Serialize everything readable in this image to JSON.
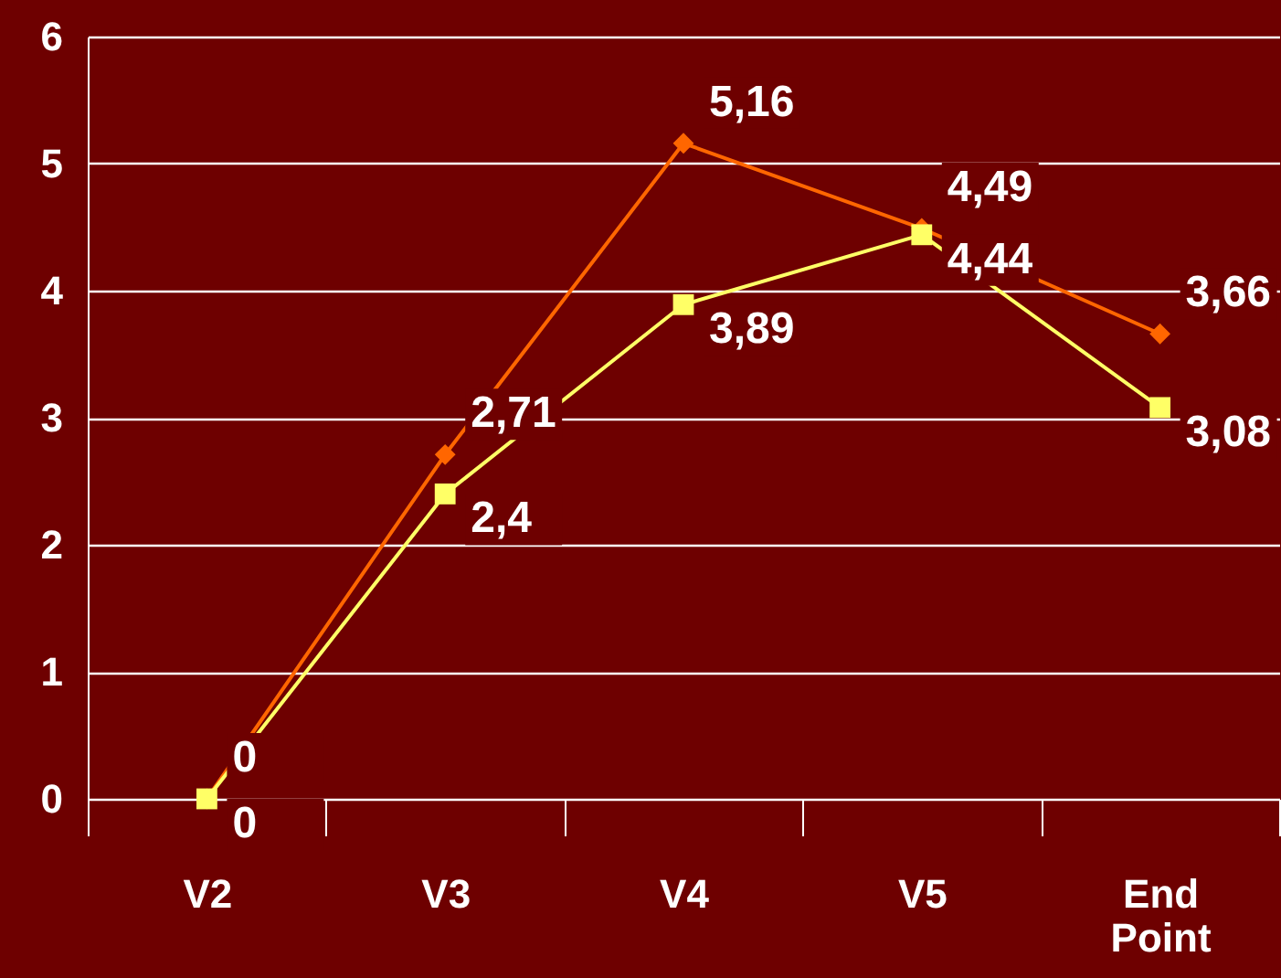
{
  "chart_data": {
    "type": "line",
    "categories": [
      "V2",
      "V3",
      "V4",
      "V5",
      "End Point"
    ],
    "series": [
      {
        "color": "#ff6600",
        "marker": "diamond",
        "values": [
          0,
          2.71,
          5.16,
          4.49,
          3.66
        ],
        "value_labels": [
          "0",
          "2,71",
          "5,16",
          "4,49",
          "3,66"
        ]
      },
      {
        "color": "#ffff66",
        "marker": "square",
        "values": [
          0,
          2.4,
          3.89,
          4.44,
          3.08
        ],
        "value_labels": [
          "0",
          "2,4",
          "3,89",
          "4,44",
          "3,08"
        ]
      }
    ],
    "ylim": [
      0,
      6
    ],
    "yticks": [
      0,
      1,
      2,
      3,
      4,
      5,
      6
    ],
    "grid": "y"
  }
}
